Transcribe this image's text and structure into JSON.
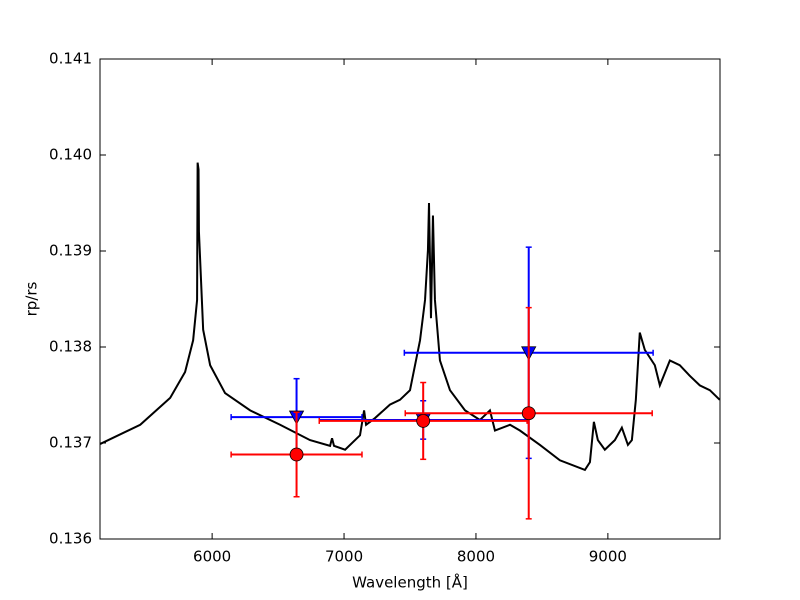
{
  "chart_data": {
    "type": "line",
    "xlabel": "Wavelength [Å]",
    "ylabel": "rp/rs",
    "xlim": [
      5150,
      9850
    ],
    "ylim": [
      0.136,
      0.141
    ],
    "xticks": [
      6000,
      7000,
      8000,
      9000
    ],
    "yticks": [
      0.136,
      0.137,
      0.138,
      0.139,
      {
        "value": 0.14,
        "label": "0.140"
      },
      0.141
    ],
    "series": [
      {
        "type": "line",
        "color": "#000000",
        "x": [
          5152,
          5455,
          5682,
          5795,
          5856,
          5886,
          5890,
          5897,
          5900,
          5932,
          5985,
          6098,
          6288,
          6515,
          6742,
          6894,
          6909,
          6924,
          7008,
          7121,
          7152,
          7167,
          7235,
          7348,
          7424,
          7500,
          7576,
          7614,
          7636,
          7644,
          7659,
          7674,
          7689,
          7727,
          7803,
          7917,
          8030,
          8106,
          8144,
          8258,
          8333,
          8485,
          8636,
          8826,
          8864,
          8894,
          8924,
          8977,
          9053,
          9106,
          9152,
          9182,
          9212,
          9242,
          9280,
          9356,
          9394,
          9470,
          9545,
          9621,
          9697,
          9773,
          9848
        ],
        "values": [
          0.13699,
          0.13719,
          0.13747,
          0.13774,
          0.13807,
          0.13849,
          0.13992,
          0.13985,
          0.1392,
          0.13818,
          0.13781,
          0.13752,
          0.13734,
          0.13719,
          0.13703,
          0.13697,
          0.13705,
          0.13697,
          0.13693,
          0.13708,
          0.13734,
          0.13719,
          0.13726,
          0.1374,
          0.13745,
          0.13755,
          0.13807,
          0.13849,
          0.13901,
          0.1395,
          0.1383,
          0.13937,
          0.13849,
          0.13786,
          0.13755,
          0.13734,
          0.13724,
          0.13734,
          0.13713,
          0.13719,
          0.13713,
          0.13698,
          0.13682,
          0.13672,
          0.1368,
          0.13722,
          0.13703,
          0.13693,
          0.13703,
          0.13716,
          0.13698,
          0.13703,
          0.13745,
          0.13815,
          0.13797,
          0.13781,
          0.1376,
          0.13786,
          0.13781,
          0.1377,
          0.1376,
          0.13755,
          0.13745
        ]
      },
      {
        "type": "errorbar",
        "marker": "triangle-down",
        "color": "#0000ff",
        "x": [
          6640,
          7600,
          8400
        ],
        "values": [
          0.13727,
          0.13724,
          0.13794
        ],
        "xerr": [
          496,
          788,
          943
        ],
        "yerr": [
          0.0004,
          0.0002,
          0.0011
        ]
      },
      {
        "type": "errorbar",
        "marker": "circle",
        "color": "#ff0000",
        "x": [
          6640,
          7600,
          8400
        ],
        "values": [
          0.13688,
          0.13723,
          0.13731
        ],
        "xerr": [
          496,
          788,
          936
        ],
        "yerr": [
          0.00044,
          0.0004,
          0.0011
        ]
      }
    ]
  }
}
